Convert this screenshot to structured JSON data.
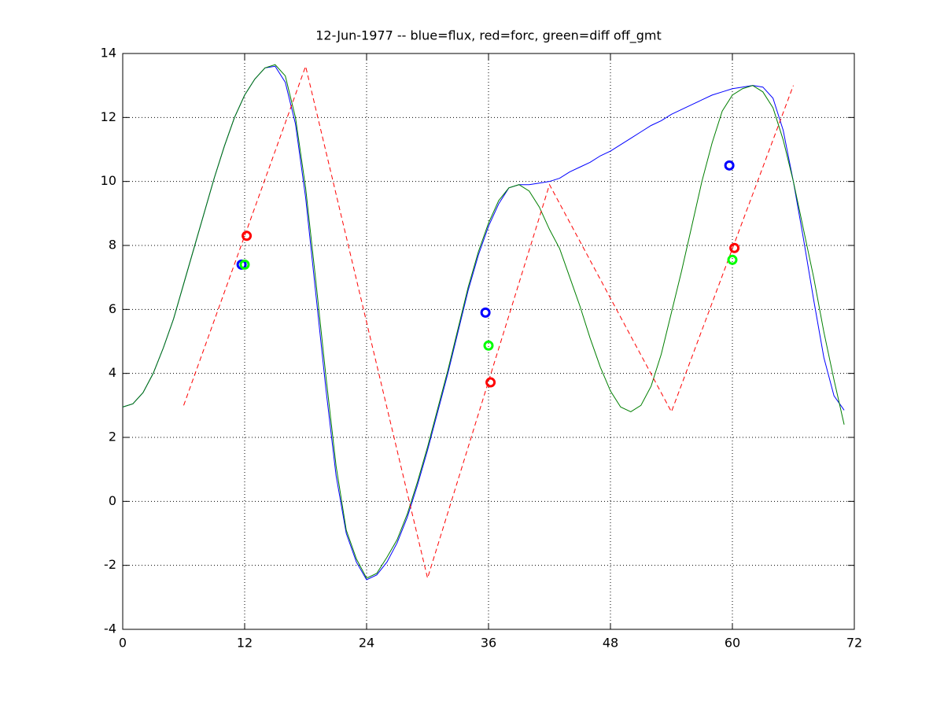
{
  "chart_data": {
    "type": "line",
    "title": "12-Jun-1977 -- blue=flux, red=forc, green=diff off_gmt",
    "xlim": [
      0,
      72
    ],
    "xticks": [
      0,
      12,
      24,
      36,
      48,
      60,
      72
    ],
    "ylim": [
      -4,
      14
    ],
    "yticks": [
      -4,
      -2,
      0,
      2,
      4,
      6,
      8,
      10,
      12,
      14
    ],
    "grid": true,
    "series": [
      {
        "color": "#0000ff",
        "style": "solid",
        "x": [
          0,
          1,
          2,
          3,
          4,
          5,
          6,
          7,
          8,
          9,
          10,
          11,
          12,
          13,
          14,
          15,
          16,
          17,
          18,
          19,
          20,
          21,
          22,
          23,
          24,
          25,
          26,
          27,
          28,
          29,
          30,
          31,
          32,
          33,
          34,
          35,
          36,
          37,
          38,
          39,
          40,
          41,
          42,
          43,
          44,
          45,
          46,
          47,
          48,
          49,
          50,
          51,
          52,
          53,
          54,
          55,
          56,
          57,
          58,
          59,
          60,
          61,
          62,
          63,
          64,
          65,
          66,
          67,
          68,
          69,
          70,
          71
        ],
        "values": [
          2.95,
          3.05,
          3.4,
          4.0,
          4.8,
          5.7,
          6.8,
          7.9,
          9.0,
          10.1,
          11.1,
          12.0,
          12.7,
          13.2,
          13.55,
          13.6,
          13.1,
          11.8,
          9.5,
          6.5,
          3.5,
          0.8,
          -1.0,
          -1.9,
          -2.45,
          -2.3,
          -1.9,
          -1.3,
          -0.5,
          0.5,
          1.6,
          2.8,
          4.0,
          5.3,
          6.6,
          7.7,
          8.6,
          9.3,
          9.8,
          9.9,
          9.9,
          9.95,
          10.0,
          10.1,
          10.3,
          10.45,
          10.6,
          10.8,
          10.95,
          11.15,
          11.35,
          11.55,
          11.75,
          11.9,
          12.1,
          12.25,
          12.4,
          12.55,
          12.7,
          12.8,
          12.9,
          12.95,
          13.0,
          12.95,
          12.6,
          11.6,
          10.0,
          8.2,
          6.3,
          4.5,
          3.3,
          2.85
        ]
      },
      {
        "color": "#007f00",
        "style": "solid",
        "x": [
          0,
          1,
          2,
          3,
          4,
          5,
          6,
          7,
          8,
          9,
          10,
          11,
          12,
          13,
          14,
          15,
          16,
          17,
          18,
          19,
          20,
          21,
          22,
          23,
          24,
          25,
          26,
          27,
          28,
          29,
          30,
          31,
          32,
          33,
          34,
          35,
          36,
          37,
          38,
          39,
          40,
          41,
          42,
          43,
          44,
          45,
          46,
          47,
          48,
          49,
          50,
          51,
          52,
          53,
          54,
          55,
          56,
          57,
          58,
          59,
          60,
          61,
          62,
          63,
          64,
          65,
          66,
          67,
          68,
          69,
          70,
          71
        ],
        "values": [
          2.95,
          3.05,
          3.4,
          4.0,
          4.8,
          5.7,
          6.8,
          7.9,
          9.0,
          10.1,
          11.1,
          12.0,
          12.7,
          13.2,
          13.55,
          13.65,
          13.3,
          12.0,
          9.8,
          6.9,
          3.9,
          1.1,
          -0.9,
          -1.8,
          -2.4,
          -2.25,
          -1.75,
          -1.2,
          -0.4,
          0.6,
          1.7,
          2.9,
          4.1,
          5.4,
          6.7,
          7.8,
          8.7,
          9.4,
          9.8,
          9.9,
          9.7,
          9.2,
          8.5,
          7.9,
          7.0,
          6.1,
          5.1,
          4.2,
          3.45,
          2.95,
          2.8,
          3.0,
          3.6,
          4.6,
          5.9,
          7.2,
          8.6,
          10.0,
          11.2,
          12.2,
          12.7,
          12.9,
          13.0,
          12.8,
          12.3,
          11.3,
          10.0,
          8.5,
          7.0,
          5.3,
          3.8,
          2.4
        ]
      },
      {
        "color": "#ff0000",
        "style": "dashed",
        "x": [
          6,
          18,
          30,
          42,
          54,
          66
        ],
        "values": [
          3.0,
          13.6,
          -2.4,
          9.9,
          2.8,
          13.0
        ]
      },
      {
        "color": "#0000ff",
        "style": "marker",
        "x": [
          11.7,
          35.7,
          59.7
        ],
        "values": [
          7.4,
          5.9,
          10.5
        ]
      },
      {
        "color": "#00ff00",
        "style": "marker",
        "x": [
          12.0,
          36.0,
          60.0
        ],
        "values": [
          7.4,
          4.87,
          7.55
        ]
      },
      {
        "color": "#ff0000",
        "style": "marker",
        "x": [
          12.2,
          36.2,
          60.2
        ],
        "values": [
          8.3,
          3.72,
          7.92
        ]
      }
    ]
  }
}
